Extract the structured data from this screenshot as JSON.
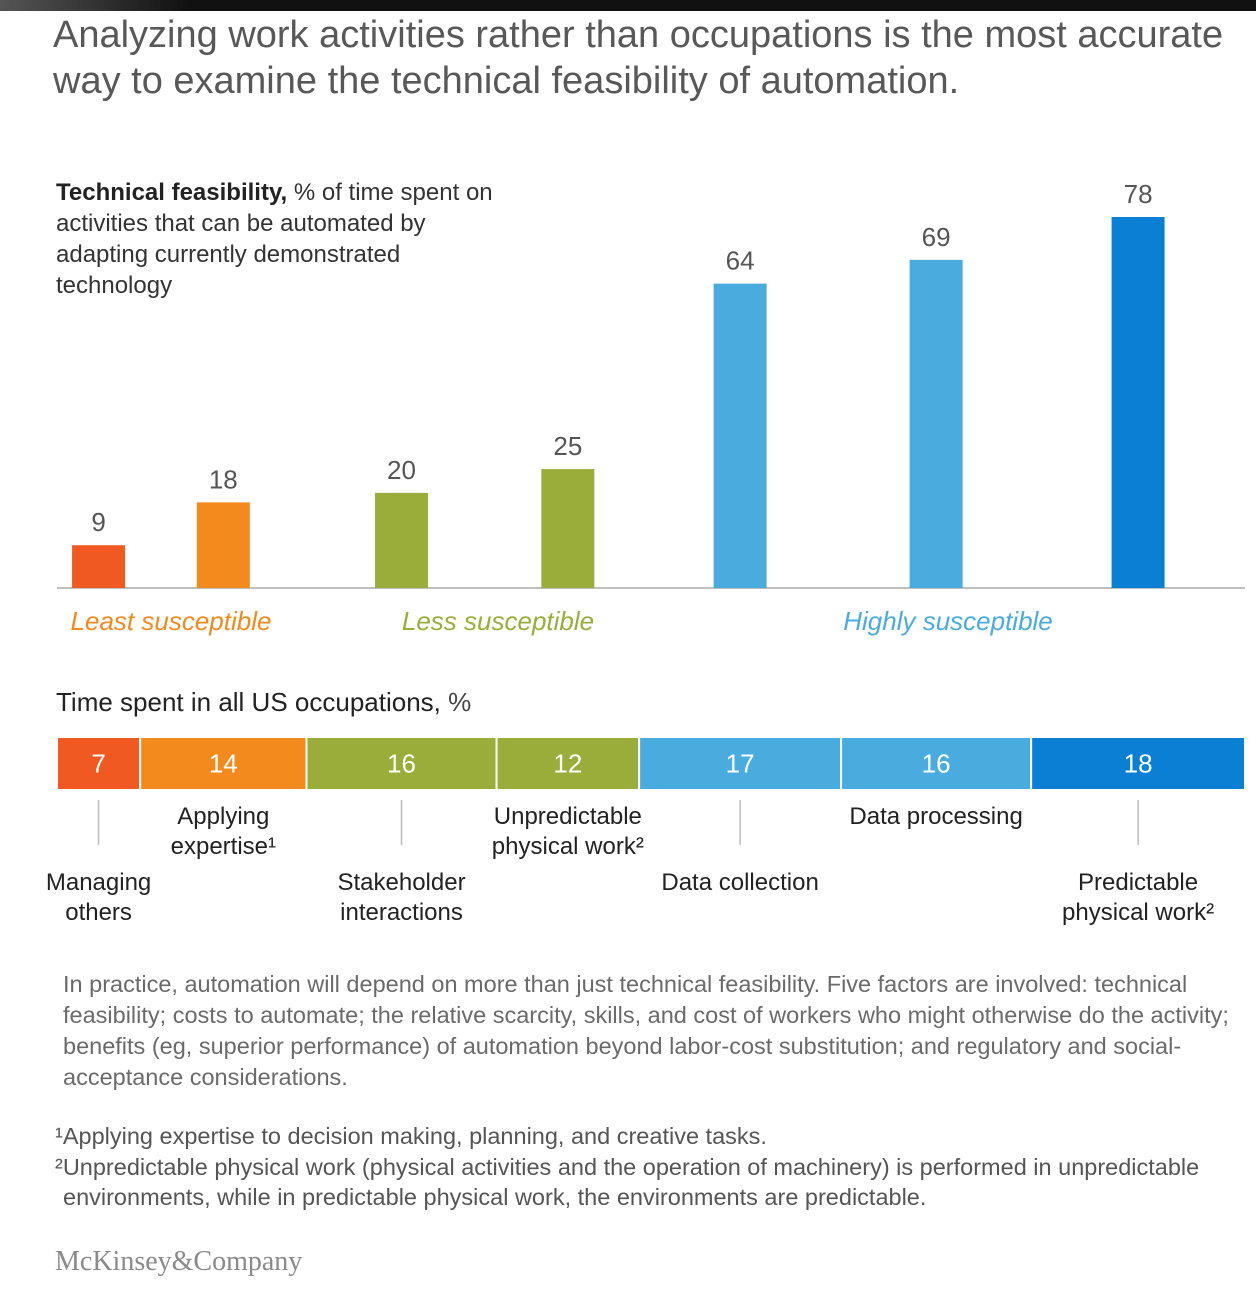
{
  "title": "Analyzing work activities rather than occupations is the most accurate way to examine the technical feasibility of automation.",
  "chart_data": [
    {
      "type": "bar",
      "title": "Technical feasibility,",
      "subtitle": "% of time spent on activities that can be automated by adapting currently demonstrated technology",
      "values": [
        9,
        18,
        20,
        25,
        64,
        69,
        78
      ],
      "colors": [
        "#f05a22",
        "#f28a1e",
        "#9aad3a",
        "#9aad3a",
        "#4aabdf",
        "#4aabdf",
        "#0a7fd4"
      ],
      "ylim": [
        0,
        80
      ],
      "groups": [
        {
          "label": "Least susceptible",
          "color": "#f28a1e"
        },
        {
          "label": "Less susceptible",
          "color": "#9aad3a"
        },
        {
          "label": "Highly susceptible",
          "color": "#4aabdf"
        }
      ]
    },
    {
      "type": "stacked-bar",
      "orientation": "horizontal",
      "title": "Time spent in all US occupations,",
      "unit": "%",
      "categories": [
        "Managing others",
        "Applying expertise¹",
        "Stakeholder interactions",
        "Unpredictable physical work²",
        "Data collection",
        "Data processing",
        "Predictable physical work²"
      ],
      "values": [
        7,
        14,
        16,
        12,
        17,
        16,
        18
      ],
      "colors": [
        "#f05a22",
        "#f28a1e",
        "#9aad3a",
        "#9aad3a",
        "#4aabdf",
        "#4aabdf",
        "#0a7fd4"
      ]
    }
  ],
  "note": "In practice, automation will depend on more than just technical feasibility. Five factors are involved: technical feasibility; costs to automate; the relative scarcity, skills, and cost of workers who might otherwise do the activity; benefits (eg, superior performance) of automation beyond labor-cost substitution; and regulatory and social-acceptance considerations.",
  "footnotes": [
    "¹Applying expertise to decision making, planning, and creative tasks.",
    "²Unpredictable physical work (physical activities and the operation of machinery) is performed in unpredictable environments, while in predictable physical work, the environments are predictable."
  ],
  "source": "McKinsey&Company"
}
